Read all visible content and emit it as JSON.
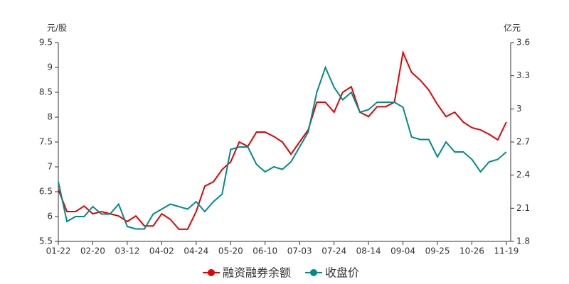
{
  "chart_data": {
    "type": "line",
    "y_label": "元/股",
    "y2_label": "亿元",
    "categories": [
      "01-22",
      null,
      null,
      null,
      "02-20",
      null,
      null,
      null,
      "03-12",
      null,
      null,
      null,
      "04-02",
      null,
      null,
      null,
      "04-24",
      null,
      null,
      null,
      "05-20",
      null,
      null,
      null,
      "06-10",
      null,
      null,
      null,
      "07-03",
      null,
      null,
      null,
      "07-24",
      null,
      null,
      null,
      "08-14",
      null,
      null,
      null,
      "09-04",
      null,
      null,
      null,
      "09-25",
      null,
      null,
      null,
      "10-26",
      null,
      null,
      null,
      "11-19"
    ],
    "series": [
      {
        "name": "融资融券余额",
        "color": "#e60000",
        "axis": "y2",
        "values": [
          2.27,
          2.07,
          2.07,
          2.12,
          2.05,
          2.07,
          2.05,
          2.03,
          1.98,
          2.03,
          1.94,
          1.94,
          2.05,
          2.0,
          1.91,
          1.91,
          2.07,
          2.3,
          2.34,
          2.45,
          2.52,
          2.7,
          2.66,
          2.79,
          2.79,
          2.75,
          2.7,
          2.59,
          2.7,
          2.81,
          3.06,
          3.06,
          2.97,
          3.15,
          3.2,
          2.97,
          2.93,
          3.02,
          3.02,
          3.06,
          3.51,
          3.33,
          3.26,
          3.17,
          3.04,
          2.93,
          2.97,
          2.88,
          2.83,
          2.81,
          2.77,
          2.72,
          2.88
        ]
      },
      {
        "name": "收盘价",
        "color": "#008b8b",
        "values": [
          6.7,
          5.9,
          6.0,
          6.0,
          6.2,
          6.05,
          6.05,
          6.25,
          5.8,
          5.75,
          5.75,
          6.05,
          6.15,
          6.25,
          6.2,
          6.15,
          6.3,
          6.1,
          6.3,
          6.45,
          7.35,
          7.4,
          7.4,
          7.05,
          6.9,
          7.0,
          6.95,
          7.1,
          7.4,
          7.7,
          8.5,
          9.0,
          8.6,
          8.35,
          8.5,
          8.1,
          8.15,
          8.3,
          8.3,
          8.3,
          8.2,
          7.6,
          7.55,
          7.55,
          7.2,
          7.5,
          7.3,
          7.3,
          7.15,
          6.9,
          7.1,
          7.15,
          7.3
        ]
      }
    ],
    "ylim": [
      5.5,
      9.5
    ],
    "yticks": [
      5.5,
      6,
      6.5,
      7,
      7.5,
      8,
      8.5,
      9,
      9.5
    ],
    "y2lim": [
      1.8,
      3.6
    ],
    "y2ticks": [
      1.8,
      2.1,
      2.4,
      2.7,
      3,
      3.3,
      3.6
    ],
    "grid": false
  }
}
